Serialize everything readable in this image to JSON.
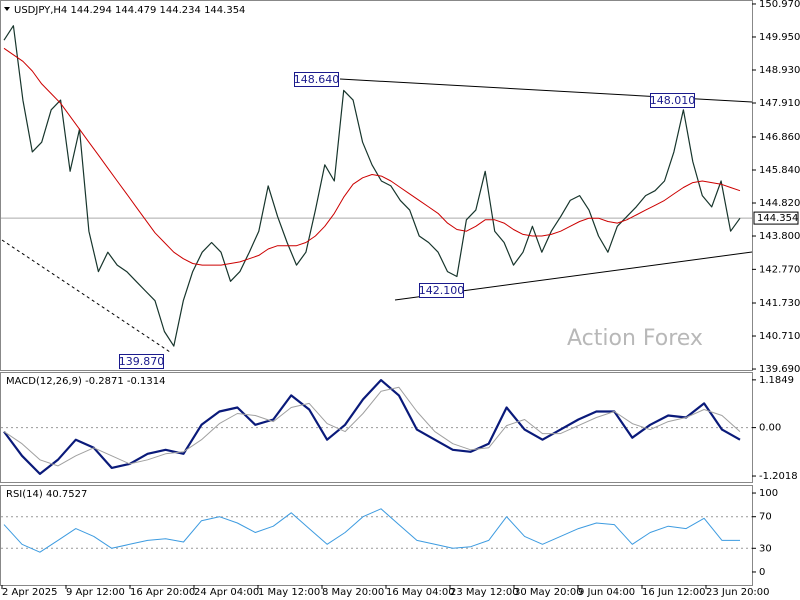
{
  "chart_data": [
    {
      "type": "line",
      "title": "USDJPY,H4  144.294 144.479 144.234 144.354",
      "x_axis_labels": [
        "2 Apr 2025",
        "9 Apr 12:00",
        "16 Apr 20:00",
        "24 Apr 04:00",
        "1 May 12:00",
        "8 May 20:00",
        "16 May 04:00",
        "23 May 12:00",
        "30 May 20:00",
        "9 Jun 04:00",
        "16 Jun 12:00",
        "23 Jun 20:00"
      ],
      "series": [
        {
          "color": "#17352c",
          "width": 1.2,
          "values": [
            149.85,
            150.3,
            148.0,
            146.4,
            146.7,
            147.7,
            148.0,
            145.8,
            147.1,
            143.95,
            142.7,
            143.3,
            142.9,
            142.7,
            142.4,
            142.1,
            141.8,
            140.85,
            140.4,
            141.8,
            142.7,
            143.3,
            143.6,
            143.3,
            142.4,
            142.7,
            143.3,
            143.95,
            145.35,
            144.4,
            143.6,
            142.9,
            143.3,
            144.6,
            146.0,
            145.5,
            148.3,
            148.0,
            146.7,
            146.0,
            145.5,
            145.35,
            144.9,
            144.6,
            143.8,
            143.6,
            143.3,
            142.7,
            142.55,
            144.3,
            144.6,
            145.8,
            143.95,
            143.6,
            142.9,
            143.3,
            144.1,
            143.3,
            143.95,
            144.4,
            144.9,
            145.05,
            144.6,
            143.8,
            143.3,
            144.1,
            144.4,
            144.7,
            145.05,
            145.2,
            145.5,
            146.4,
            147.7,
            146.1,
            145.05,
            144.7,
            145.5,
            143.95,
            144.35
          ]
        },
        {
          "color": "#cc0000",
          "width": 1,
          "values": [
            149.6,
            149.4,
            149.2,
            148.9,
            148.5,
            148.2,
            147.9,
            147.5,
            147.1,
            146.7,
            146.3,
            145.9,
            145.5,
            145.1,
            144.7,
            144.3,
            143.9,
            143.6,
            143.3,
            143.1,
            142.95,
            142.9,
            142.9,
            142.9,
            142.95,
            143.0,
            143.1,
            143.2,
            143.4,
            143.5,
            143.5,
            143.5,
            143.6,
            143.8,
            144.1,
            144.5,
            145.0,
            145.4,
            145.6,
            145.7,
            145.65,
            145.5,
            145.3,
            145.1,
            144.9,
            144.7,
            144.5,
            144.2,
            144.0,
            143.95,
            144.1,
            144.3,
            144.3,
            144.2,
            144.0,
            143.85,
            143.8,
            143.8,
            143.85,
            143.95,
            144.1,
            144.25,
            144.35,
            144.35,
            144.25,
            144.2,
            144.3,
            144.45,
            144.6,
            144.75,
            144.9,
            145.1,
            145.3,
            145.45,
            145.5,
            145.45,
            145.4,
            145.3,
            145.2
          ]
        }
      ],
      "ylim": [
        139.66,
        151.0
      ],
      "yticks": [
        {
          "value": 150.97,
          "label": "150.970"
        },
        {
          "value": 149.95,
          "label": "149.950"
        },
        {
          "value": 148.93,
          "label": "148.930"
        },
        {
          "value": 147.91,
          "label": "147.910"
        },
        {
          "value": 146.86,
          "label": "146.860"
        },
        {
          "value": 145.84,
          "label": "145.840"
        },
        {
          "value": 144.82,
          "label": "144.820"
        },
        {
          "value": 143.8,
          "label": "143.800"
        },
        {
          "value": 142.77,
          "label": "142.770"
        },
        {
          "value": 141.73,
          "label": "141.730"
        },
        {
          "value": 140.71,
          "label": "140.710"
        },
        {
          "value": 139.69,
          "label": "139.690"
        }
      ],
      "last_price": {
        "value": 144.354,
        "label": "144.354"
      },
      "annotations": [
        "148.640",
        "148.010",
        "142.100",
        "139.870"
      ],
      "watermark": "Action Forex"
    },
    {
      "type": "line",
      "title": "MACD(12,26,9) -0.2871 -0.1314",
      "series": [
        {
          "color": "#0a1a7a",
          "width": 2.2,
          "values": [
            -0.1,
            -0.7,
            -1.15,
            -0.8,
            -0.3,
            -0.5,
            -1.0,
            -0.9,
            -0.65,
            -0.55,
            -0.65,
            0.07,
            0.4,
            0.5,
            0.07,
            0.2,
            0.8,
            0.45,
            -0.3,
            0.07,
            0.7,
            1.18,
            0.8,
            -0.05,
            -0.3,
            -0.55,
            -0.6,
            -0.4,
            0.5,
            -0.05,
            -0.3,
            -0.05,
            0.2,
            0.4,
            0.4,
            -0.25,
            0.07,
            0.3,
            0.25,
            0.6,
            -0.05,
            -0.3
          ]
        },
        {
          "color": "#a0a0a0",
          "width": 1,
          "values": [
            -0.1,
            -0.4,
            -0.8,
            -0.95,
            -0.7,
            -0.5,
            -0.7,
            -0.9,
            -0.8,
            -0.65,
            -0.6,
            -0.3,
            0.1,
            0.35,
            0.3,
            0.15,
            0.5,
            0.6,
            0.1,
            -0.1,
            0.35,
            0.9,
            1.0,
            0.4,
            -0.1,
            -0.4,
            -0.55,
            -0.5,
            0.05,
            0.2,
            -0.15,
            -0.15,
            0.05,
            0.25,
            0.4,
            0.1,
            -0.05,
            0.15,
            0.25,
            0.45,
            0.3,
            -0.1
          ]
        }
      ],
      "ylim": [
        -1.35,
        1.38
      ],
      "yticks": [
        1.1849,
        {
          "value": 0,
          "label": "0.00"
        },
        -1.2018
      ],
      "levels": [
        0
      ]
    },
    {
      "type": "line",
      "title": "RSI(14) 40.7527",
      "series": [
        {
          "color": "#3d9be0",
          "width": 1,
          "values": [
            60,
            35,
            25,
            40,
            55,
            45,
            30,
            35,
            40,
            42,
            38,
            65,
            70,
            62,
            50,
            58,
            75,
            55,
            35,
            50,
            70,
            80,
            60,
            40,
            35,
            30,
            32,
            40,
            70,
            45,
            35,
            45,
            55,
            62,
            60,
            35,
            50,
            58,
            55,
            68,
            40,
            40
          ]
        }
      ],
      "ylim": [
        -16.5,
        108.9
      ],
      "yticks": [
        100,
        70,
        30,
        0
      ],
      "levels": [
        70,
        30
      ]
    }
  ]
}
